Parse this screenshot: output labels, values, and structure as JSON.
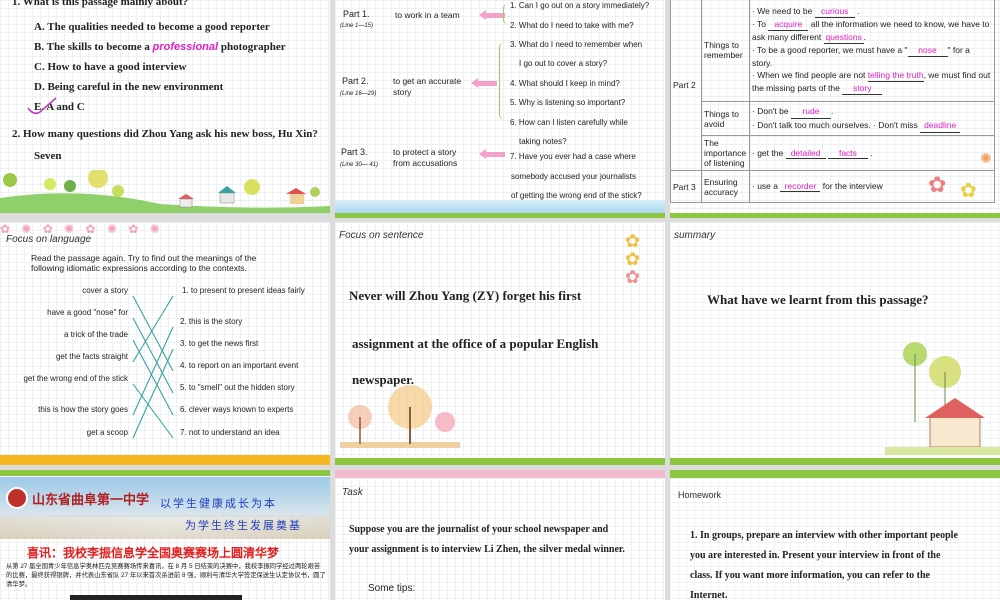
{
  "slide1": {
    "q1": "1. What is this passage mainly about?",
    "options": [
      "A.  The qualities needed to become a good reporter",
      "B.  The skills to become a",
      "C.  How to have a good interview",
      "D.  Being careful in the new environment",
      "E.  A and C"
    ],
    "option_b_highlight": "professional",
    "option_b_end": "photographer",
    "q2": "2. How many questions did Zhou Yang ask his new boss, Hu Xin?",
    "answer2": "Seven"
  },
  "slide2": {
    "parts": [
      {
        "name": "Part 1.",
        "lines": "(Line 1—15)",
        "purpose": "to work in a team"
      },
      {
        "name": "Part 2.",
        "lines": "(Line 16—29)",
        "purpose": "to get an accurate story"
      },
      {
        "name": "Part 3.",
        "lines": "(Line 30— 41)",
        "purpose": "to protect a story from  accusations"
      }
    ],
    "questions": [
      "1. Can I go out on a story immediately?",
      "2. What do I need to take with me?",
      "3. What do I need to remember when",
      "I go out to cover a story?",
      "4. What should I keep in mind?",
      "5. Why is listening so important?",
      "6. How can I listen carefully while",
      "taking notes?",
      "7. Have you ever had a case where",
      "somebody accused your journalists",
      "of getting the wrong end of the stick?"
    ]
  },
  "slide3": {
    "part2": "Part 2",
    "part3": "Part 3",
    "rows": [
      {
        "head": "Things to remember"
      },
      {
        "head": "Things to avoid"
      },
      {
        "head": "The importance of listening"
      },
      {
        "head": "Ensuring accuracy"
      }
    ],
    "t1a": "We need to be",
    "t1b": "curious",
    "t2a": "To",
    "t2b": "acquire",
    "t2c": "all the information we need to know, we have to ask many different",
    "t2d": "questions",
    "t3a": "To be a good reporter, we must have a \"",
    "t3b": "nose",
    "t3c": "\" for a story.",
    "t4a": "When we find people are not",
    "t4b": "telling the truth",
    "t4c": ", we must find out the missing parts of the",
    "t4d": "story",
    "a1a": "Don't be",
    "a1b": "rude",
    "a2a": "Don't talk too much ourselves.  · Don't miss",
    "a2b": "deadline",
    "l1a": "get the",
    "l1b": "detailed",
    "l1c": "facts",
    "e1a": "use a",
    "e1b": "recorder",
    "e1c": "for the interview"
  },
  "slide4": {
    "label": "Focus on language",
    "instruction": "Read the passage again. Try to find out the meanings of the following idiomatic expressions according to the contexts.",
    "expressions": [
      "cover a story",
      "have a good \"nose\" for",
      "a trick of the trade",
      "get the facts straight",
      "get the wrong end of the stick",
      "this is how the story goes",
      "get a scoop"
    ],
    "meanings": [
      "1. to present  to present ideas fairly",
      "2. this is the story",
      "3. to get the news first",
      "4. to report on an important event",
      "5. to \"smell\" out the hidden story",
      "6. clever ways known to experts",
      "7. not to understand an idea"
    ],
    "matches": [
      4,
      5,
      6,
      1,
      7,
      2,
      3
    ]
  },
  "slide5": {
    "label": "Focus on sentence",
    "line1a": "Never will",
    "line1b": "Zhou Yang (ZY) forget his first",
    "line2": "assignment at the office of a popular English",
    "line3": "newspaper."
  },
  "slide6": {
    "label": "summary",
    "text": "What have we learnt from this passage?"
  },
  "slide7": {
    "school": "山东省曲阜第一中学",
    "motto1": "以学生健康成长为本",
    "motto2": "为学生终生发展奠基",
    "headline": "喜讯：我校李振信息学全国奥赛赛场上圆清华梦",
    "body": "从第 27 届全国青少年信息学奥林匹克竞赛赛场传来喜讯，在 8 月 5 日结束的决赛中，我校李振同学经过两轮艰苦的比赛，最终获得银牌，并代表山东省队 27 年以来首次杀进前 8 强，顺利与清华大学签定保送生认定协议书，圆了清华梦。"
  },
  "slide8": {
    "label": "Task",
    "text1": "Suppose you are the journalist of your school newspaper and",
    "text2": "your assignment is to interview Li Zhen, the silver medal winner.",
    "tips": "Some tips:"
  },
  "slide9": {
    "label": "Homework",
    "l1": "1. In groups, prepare an interview with other important people",
    "l2": "you are interested in. Present your interview in front of the",
    "l3": "class. If you want more information, you can refer to the",
    "l4": "Internet."
  },
  "colors": {
    "highlight": "#e020c0",
    "green_bar": "#8cc63f",
    "pink_bar": "#f2b8cc",
    "orange_bar": "#f5b820",
    "match_line": "#2a9d9d"
  }
}
